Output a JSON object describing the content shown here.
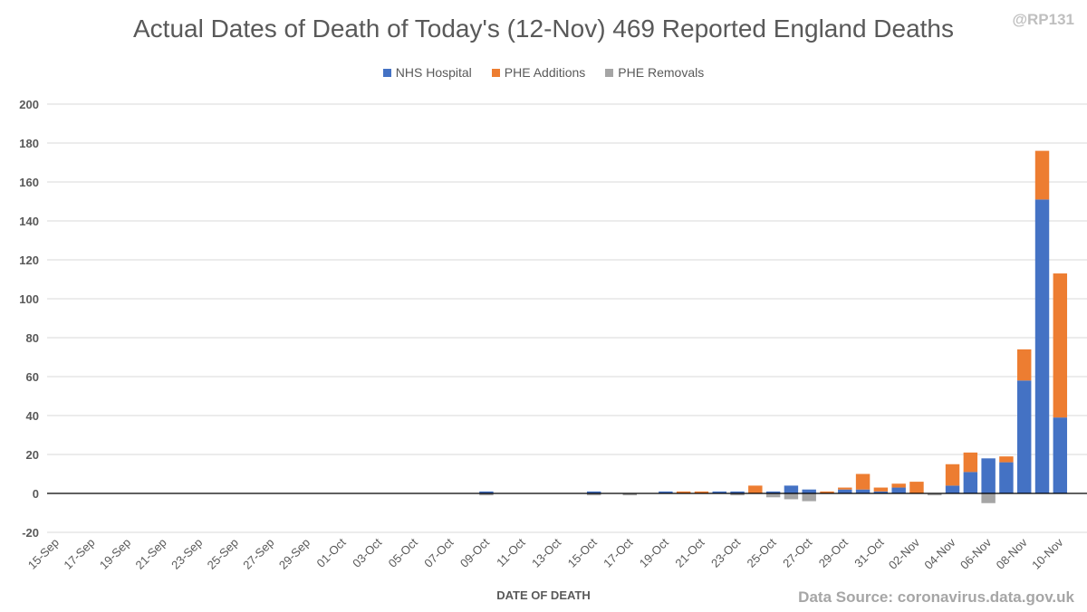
{
  "handle": "@RP131",
  "source_note": "Data Source: coronavirus.data.gov.uk",
  "chart_data": {
    "type": "bar",
    "stacked": true,
    "title": "Actual Dates of Death of Today's (12-Nov) 469 Reported England Deaths",
    "xlabel": "DATE OF DEATH",
    "ylabel": "",
    "ylim": [
      -20,
      200
    ],
    "yticks": [
      -20,
      0,
      20,
      40,
      60,
      80,
      100,
      120,
      140,
      160,
      180,
      200
    ],
    "grid": true,
    "legend_position": "top",
    "categories": [
      "15-Sep",
      "16-Sep",
      "17-Sep",
      "18-Sep",
      "19-Sep",
      "20-Sep",
      "21-Sep",
      "22-Sep",
      "23-Sep",
      "24-Sep",
      "25-Sep",
      "26-Sep",
      "27-Sep",
      "28-Sep",
      "29-Sep",
      "30-Sep",
      "01-Oct",
      "02-Oct",
      "03-Oct",
      "04-Oct",
      "05-Oct",
      "06-Oct",
      "07-Oct",
      "08-Oct",
      "09-Oct",
      "10-Oct",
      "11-Oct",
      "12-Oct",
      "13-Oct",
      "14-Oct",
      "15-Oct",
      "16-Oct",
      "17-Oct",
      "18-Oct",
      "19-Oct",
      "20-Oct",
      "21-Oct",
      "22-Oct",
      "23-Oct",
      "24-Oct",
      "25-Oct",
      "26-Oct",
      "27-Oct",
      "28-Oct",
      "29-Oct",
      "30-Oct",
      "31-Oct",
      "01-Nov",
      "02-Nov",
      "03-Nov",
      "04-Nov",
      "05-Nov",
      "06-Nov",
      "07-Nov",
      "08-Nov",
      "09-Nov",
      "10-Nov",
      "11-Nov"
    ],
    "tick_labels": [
      "15-Sep",
      "",
      "17-Sep",
      "",
      "19-Sep",
      "",
      "21-Sep",
      "",
      "23-Sep",
      "",
      "25-Sep",
      "",
      "27-Sep",
      "",
      "29-Sep",
      "",
      "01-Oct",
      "",
      "03-Oct",
      "",
      "05-Oct",
      "",
      "07-Oct",
      "",
      "09-Oct",
      "",
      "11-Oct",
      "",
      "13-Oct",
      "",
      "15-Oct",
      "",
      "17-Oct",
      "",
      "19-Oct",
      "",
      "21-Oct",
      "",
      "23-Oct",
      "",
      "25-Oct",
      "",
      "27-Oct",
      "",
      "29-Oct",
      "",
      "31-Oct",
      "",
      "02-Nov",
      "",
      "04-Nov",
      "",
      "06-Nov",
      "",
      "08-Nov",
      "",
      "10-Nov",
      ""
    ],
    "series": [
      {
        "name": "NHS Hospital",
        "color": "#4472c4",
        "values": [
          0,
          0,
          0,
          0,
          0,
          0,
          0,
          0,
          0,
          0,
          0,
          0,
          0,
          0,
          0,
          0,
          0,
          0,
          0,
          0,
          0,
          0,
          0,
          0,
          1,
          0,
          0,
          0,
          0,
          0,
          1,
          0,
          0,
          0,
          1,
          0,
          0,
          1,
          1,
          0,
          1,
          4,
          2,
          0,
          2,
          2,
          1,
          3,
          0,
          0,
          4,
          11,
          18,
          16,
          58,
          151,
          39,
          0
        ]
      },
      {
        "name": "PHE Additions",
        "color": "#ed7d31",
        "values": [
          0,
          0,
          0,
          0,
          0,
          0,
          0,
          0,
          0,
          0,
          0,
          0,
          0,
          0,
          0,
          0,
          0,
          0,
          0,
          0,
          0,
          0,
          0,
          0,
          0,
          0,
          0,
          0,
          0,
          0,
          0,
          0,
          0,
          0,
          0,
          1,
          1,
          0,
          0,
          4,
          0,
          0,
          0,
          1,
          1,
          8,
          2,
          2,
          6,
          0,
          11,
          10,
          0,
          3,
          16,
          25,
          74,
          0
        ]
      },
      {
        "name": "PHE Removals",
        "color": "#a5a5a5",
        "values": [
          0,
          0,
          0,
          0,
          0,
          0,
          0,
          0,
          0,
          0,
          0,
          0,
          0,
          0,
          0,
          0,
          0,
          0,
          0,
          0,
          0,
          0,
          0,
          0,
          -1,
          0,
          0,
          0,
          0,
          0,
          -1,
          0,
          -1,
          0,
          0,
          0,
          0,
          0,
          -1,
          0,
          -2,
          -3,
          -4,
          0,
          0,
          0,
          0,
          0,
          0,
          -1,
          0,
          0,
          -5,
          0,
          0,
          0,
          0,
          0
        ]
      }
    ]
  }
}
